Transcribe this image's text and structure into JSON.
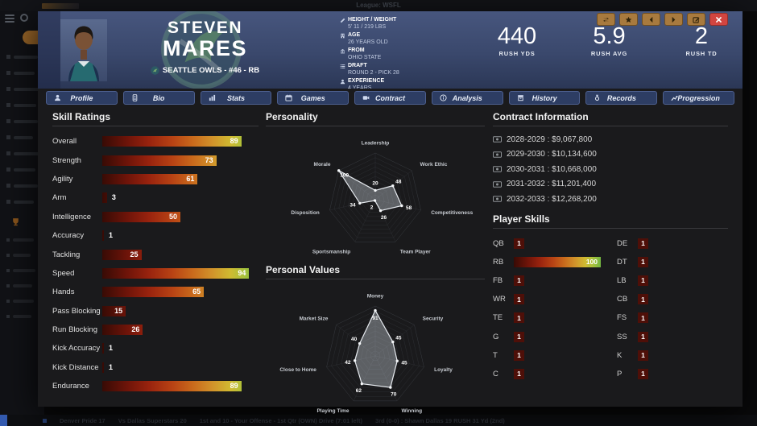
{
  "topbar": {
    "league_label": "League: WSFL"
  },
  "window_buttons": [
    {
      "name": "compare-button",
      "icon": "compare-icon",
      "style": "amber"
    },
    {
      "name": "favorite-button",
      "icon": "star-icon",
      "style": "amber"
    },
    {
      "name": "previous-player-button",
      "icon": "prev-icon",
      "style": "amber"
    },
    {
      "name": "next-player-button",
      "icon": "next-icon",
      "style": "amber"
    },
    {
      "name": "edit-player-button",
      "icon": "edit-icon",
      "style": "amber"
    },
    {
      "name": "close-button",
      "icon": "close-icon",
      "style": "red"
    }
  ],
  "player": {
    "first_name": "STEVEN",
    "last_name": "MARES",
    "team_line": "SEATTLE OWLS - #46 - RB",
    "details": [
      {
        "icon": "ruler-icon",
        "label": "HEIGHT / WEIGHT",
        "value": "5' 11 / 219 LBS"
      },
      {
        "icon": "building-icon",
        "label": "AGE",
        "value": "26 YEARS OLD"
      },
      {
        "icon": "school-icon",
        "label": "FROM",
        "value": "OHIO STATE"
      },
      {
        "icon": "list-icon",
        "label": "DRAFT",
        "value": "ROUND 2 - PICK 28"
      },
      {
        "icon": "person-icon",
        "label": "EXPERIENCE",
        "value": "4 YEARS"
      }
    ],
    "headline_stats": [
      {
        "value": "440",
        "label": "RUSH YDS"
      },
      {
        "value": "5.9",
        "label": "RUSH AVG"
      },
      {
        "value": "2",
        "label": "RUSH TD"
      }
    ]
  },
  "tabs": [
    {
      "label": "Profile",
      "icon": "user-icon"
    },
    {
      "label": "Bio",
      "icon": "idcard-icon"
    },
    {
      "label": "Stats",
      "icon": "chart-icon"
    },
    {
      "label": "Games",
      "icon": "calendar-icon"
    },
    {
      "label": "Contract",
      "icon": "video-icon"
    },
    {
      "label": "Analysis",
      "icon": "info-icon"
    },
    {
      "label": "History",
      "icon": "history-icon"
    },
    {
      "label": "Records",
      "icon": "medal-icon"
    },
    {
      "label": "Progression",
      "icon": "progression-icon"
    }
  ],
  "sections": {
    "skill_ratings": {
      "title": "Skill Ratings"
    },
    "personality": {
      "title": "Personality"
    },
    "personal_values": {
      "title": "Personal Values"
    },
    "contract": {
      "title": "Contract Information",
      "rows": [
        {
          "years": "2028-2029",
          "amount": "$9,067,800"
        },
        {
          "years": "2029-2030",
          "amount": "$10,134,600"
        },
        {
          "years": "2030-2031",
          "amount": "$10,668,000"
        },
        {
          "years": "2031-2032",
          "amount": "$11,201,400"
        },
        {
          "years": "2032-2033",
          "amount": "$12,268,200"
        }
      ]
    },
    "player_skills": {
      "title": "Player Skills",
      "left": [
        {
          "label": "QB",
          "value": 1
        },
        {
          "label": "RB",
          "value": 100
        },
        {
          "label": "FB",
          "value": 1
        },
        {
          "label": "WR",
          "value": 1
        },
        {
          "label": "TE",
          "value": 1
        },
        {
          "label": "G",
          "value": 1
        },
        {
          "label": "T",
          "value": 1
        },
        {
          "label": "C",
          "value": 1
        }
      ],
      "right": [
        {
          "label": "DE",
          "value": 1
        },
        {
          "label": "DT",
          "value": 1
        },
        {
          "label": "LB",
          "value": 1
        },
        {
          "label": "CB",
          "value": 1
        },
        {
          "label": "FS",
          "value": 1
        },
        {
          "label": "SS",
          "value": 1
        },
        {
          "label": "K",
          "value": 1
        },
        {
          "label": "P",
          "value": 1
        }
      ]
    }
  },
  "statusbar": {
    "segments": [
      "Denver Pride 17",
      "Vs Dallas Superstars 20",
      "1st and 10 - Your Offense - 1st Qtr (OWN) Drive (7:01 left)",
      "3rd (0-0) : Shawn Dallas 19 RUSH 31 Yd (2nd)"
    ]
  },
  "colors": {
    "accent_amber": "#a87a3e",
    "close_red": "#d24540",
    "header_top": "#47567e",
    "header_bottom": "#2b3756",
    "tab_blue": "#2d3d63",
    "bar_green": "#72b641",
    "bar_dark_red": "#380b05",
    "chip_red": "#4e0f08"
  },
  "chart_data": [
    {
      "type": "bar",
      "title": "Skill Ratings",
      "orientation": "horizontal",
      "xlim": [
        0,
        100
      ],
      "categories": [
        "Overall",
        "Strength",
        "Agility",
        "Arm",
        "Intelligence",
        "Accuracy",
        "Tackling",
        "Speed",
        "Hands",
        "Pass Blocking",
        "Run Blocking",
        "Kick Accuracy",
        "Kick Distance",
        "Endurance"
      ],
      "values": [
        89,
        73,
        61,
        3,
        50,
        1,
        25,
        94,
        65,
        15,
        26,
        1,
        1,
        89
      ]
    },
    {
      "type": "radar",
      "title": "Personality",
      "range": [
        0,
        100
      ],
      "categories": [
        "Leadership",
        "Work Ethic",
        "Competitiveness",
        "Team Player",
        "Sportsmanship",
        "Disposition",
        "Morale"
      ],
      "values": [
        20,
        48,
        58,
        26,
        2,
        34,
        100
      ]
    },
    {
      "type": "radar",
      "title": "Personal Values",
      "range": [
        0,
        100
      ],
      "categories": [
        "Money",
        "Security",
        "Loyalty",
        "Winning",
        "Playing Time",
        "Close to Home",
        "Market Size"
      ],
      "values": [
        91,
        45,
        45,
        70,
        62,
        42,
        40
      ]
    },
    {
      "type": "bar",
      "title": "Player Skills",
      "orientation": "horizontal",
      "xlim": [
        0,
        100
      ],
      "categories": [
        "QB",
        "RB",
        "FB",
        "WR",
        "TE",
        "G",
        "T",
        "C",
        "DE",
        "DT",
        "LB",
        "CB",
        "FS",
        "SS",
        "K",
        "P"
      ],
      "values": [
        1,
        100,
        1,
        1,
        1,
        1,
        1,
        1,
        1,
        1,
        1,
        1,
        1,
        1,
        1,
        1
      ]
    }
  ]
}
